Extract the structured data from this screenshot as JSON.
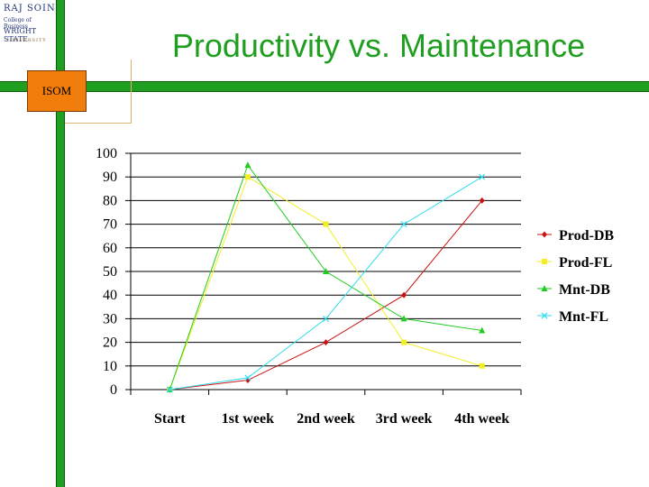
{
  "slide": {
    "title": "Productivity vs. Maintenance",
    "badge": "ISOM",
    "logo": {
      "line1": "RAJ SOIN",
      "line2": "College of Business",
      "line3": "WRIGHT STATE",
      "line4": "UNIVERSITY"
    }
  },
  "colors": {
    "accent_green": "#1f9e1f",
    "badge_orange": "#f07d0c",
    "title_green": "#1f9e1f"
  },
  "chart_data": {
    "type": "line",
    "title": "",
    "xlabel": "",
    "ylabel": "",
    "categories": [
      "Start",
      "1st week",
      "2nd week",
      "3rd week",
      "4th week"
    ],
    "ylim": [
      0,
      100
    ],
    "yticks": [
      0,
      10,
      20,
      30,
      40,
      50,
      60,
      70,
      80,
      90,
      100
    ],
    "grid": true,
    "legend_position": "right",
    "series": [
      {
        "name": "Prod-DB",
        "color": "#cc1111",
        "marker": "diamond",
        "values": [
          0,
          4,
          20,
          40,
          80
        ]
      },
      {
        "name": "Prod-FL",
        "color": "#f2ee22",
        "marker": "square",
        "values": [
          0,
          90,
          70,
          20,
          10
        ]
      },
      {
        "name": "Mnt-DB",
        "color": "#22cc22",
        "marker": "triangle",
        "values": [
          0,
          95,
          50,
          30,
          25
        ]
      },
      {
        "name": "Mnt-FL",
        "color": "#33ddee",
        "marker": "x",
        "values": [
          0,
          5,
          30,
          70,
          90
        ]
      }
    ]
  }
}
